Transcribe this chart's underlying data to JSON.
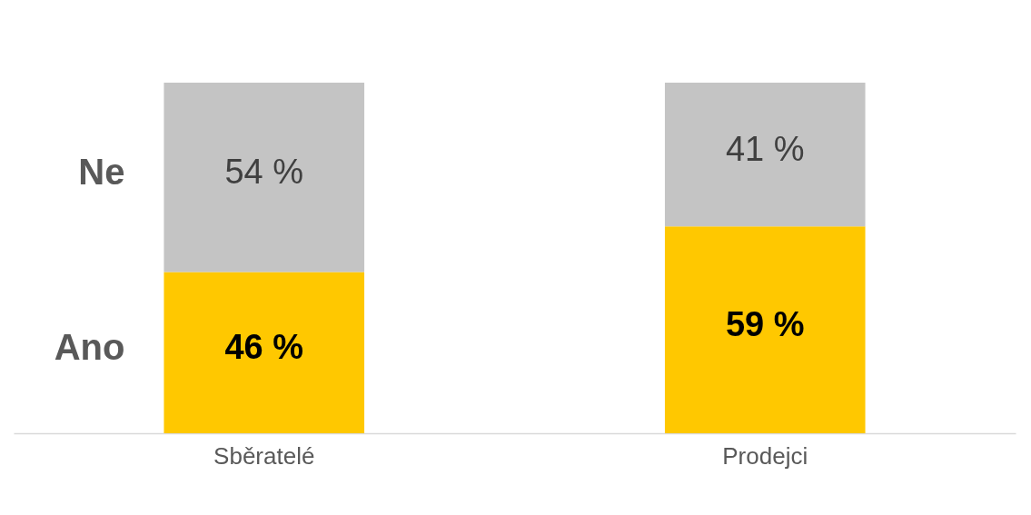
{
  "chart_data": {
    "type": "bar",
    "stacked": true,
    "categories": [
      "Sběratelé",
      "Prodejci"
    ],
    "ylim": [
      0,
      100
    ],
    "series": [
      {
        "name": "Ano",
        "color": "#ffc800",
        "values": [
          46,
          59
        ],
        "value_labels": [
          "46 %",
          "59 %"
        ]
      },
      {
        "name": "Ne",
        "color": "#c4c4c4",
        "values": [
          54,
          41
        ],
        "value_labels": [
          "54 %",
          "41 %"
        ]
      }
    ]
  }
}
